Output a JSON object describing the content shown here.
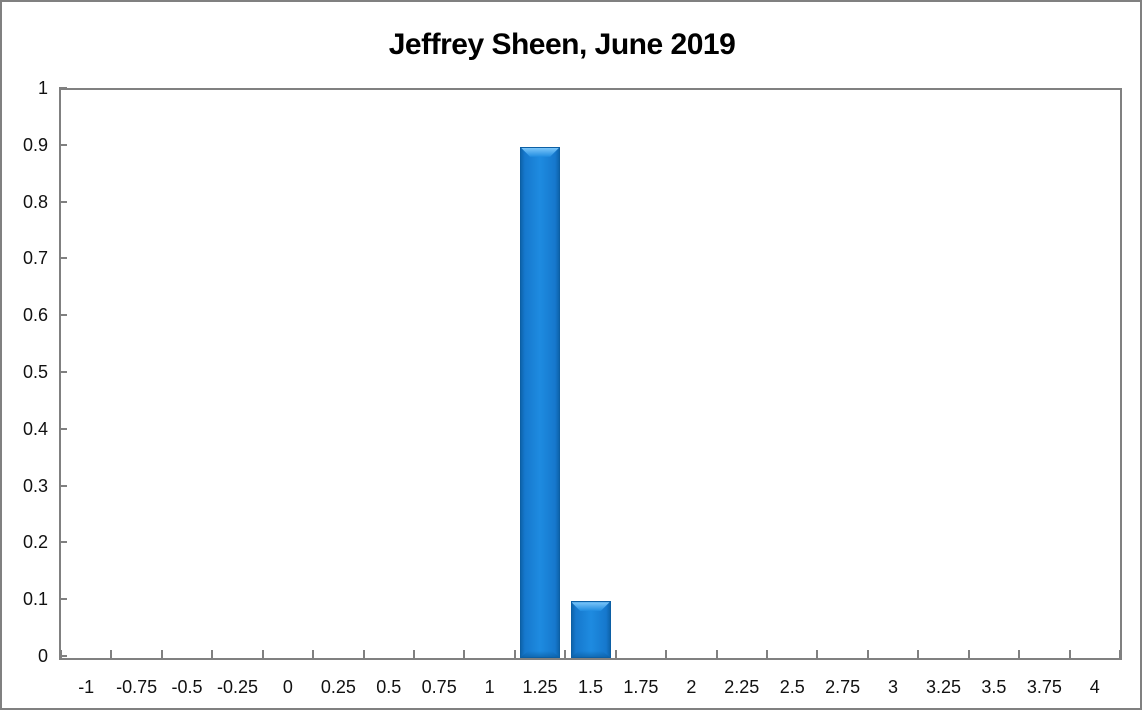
{
  "window": {
    "background_color": "#ffffff",
    "border_color": "#808080"
  },
  "chart_data": {
    "type": "bar",
    "title": "Jeffrey Sheen, June 2019",
    "xlabel": "",
    "ylabel": "",
    "categories": [
      "-1",
      "-0.75",
      "-0.5",
      "-0.25",
      "0",
      "0.25",
      "0.5",
      "0.75",
      "1",
      "1.25",
      "1.5",
      "1.75",
      "2",
      "2.25",
      "2.5",
      "2.75",
      "3",
      "3.25",
      "3.5",
      "3.75",
      "4"
    ],
    "values": [
      0,
      0,
      0,
      0,
      0,
      0,
      0,
      0,
      0,
      0.9,
      0.1,
      0,
      0,
      0,
      0,
      0,
      0,
      0,
      0,
      0,
      0
    ],
    "ylim": [
      0,
      1
    ],
    "ytick_labels": [
      "1",
      "0.9",
      "0.8",
      "0.7",
      "0.6",
      "0.5",
      "0.4",
      "0.3",
      "0.2",
      "0.1",
      "0"
    ],
    "grid": false,
    "legend_position": "none",
    "colors": {
      "bar_main": "#1678cd",
      "bar_light": "#1e8be0",
      "bar_edge": "#0c5fa4",
      "bar_highlight": "#7cc6f9",
      "axis": "#808080",
      "label_text": "#111111",
      "title_text": "#000000"
    }
  }
}
